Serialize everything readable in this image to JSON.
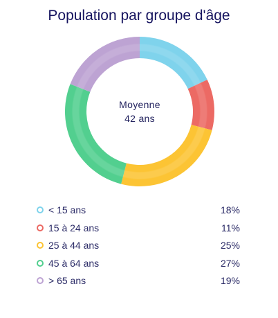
{
  "chart_data": {
    "type": "pie",
    "title": "Population par groupe d'âge",
    "center_label": "Moyenne",
    "center_value": "42 ans",
    "categories": [
      "< 15 ans",
      "15 à 24 ans",
      "25 à 44 ans",
      "45 à 64 ans",
      "> 65 ans"
    ],
    "values": [
      18,
      11,
      25,
      27,
      19
    ],
    "value_labels": [
      "18%",
      "11%",
      "25%",
      "27%",
      "19%"
    ],
    "colors": [
      "#7fd3ec",
      "#ec6a64",
      "#fcc434",
      "#52cf8f",
      "#bda3d3"
    ],
    "donut": true,
    "start_angle": "top",
    "legend_position": "bottom"
  }
}
